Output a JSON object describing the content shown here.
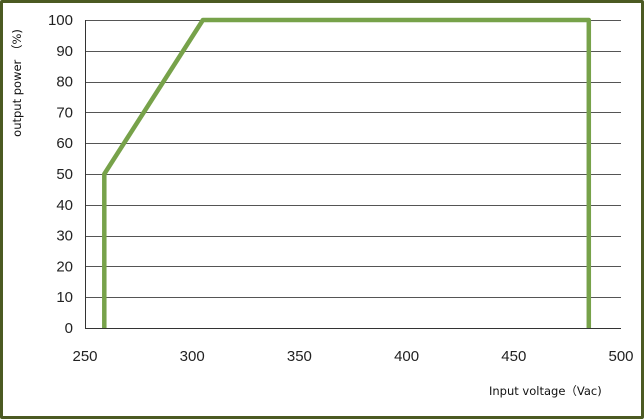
{
  "chart_data": {
    "type": "line",
    "title": "",
    "xlabel": "Input voltage（Vac)",
    "ylabel": "output power （%)",
    "xlim": [
      250,
      500
    ],
    "ylim": [
      0,
      100
    ],
    "x_ticks": [
      250,
      300,
      350,
      400,
      450,
      500
    ],
    "y_ticks": [
      0,
      10,
      20,
      30,
      40,
      50,
      60,
      70,
      80,
      90,
      100
    ],
    "grid": "horizontal",
    "colors": {
      "line": "#77a24a",
      "grid": "#555555",
      "axis": "#333333",
      "frame": "#4b5a22"
    },
    "series": [
      {
        "x": [
          259,
          259,
          305,
          485,
          485
        ],
        "y": [
          0,
          50,
          100,
          100,
          0
        ]
      }
    ]
  }
}
